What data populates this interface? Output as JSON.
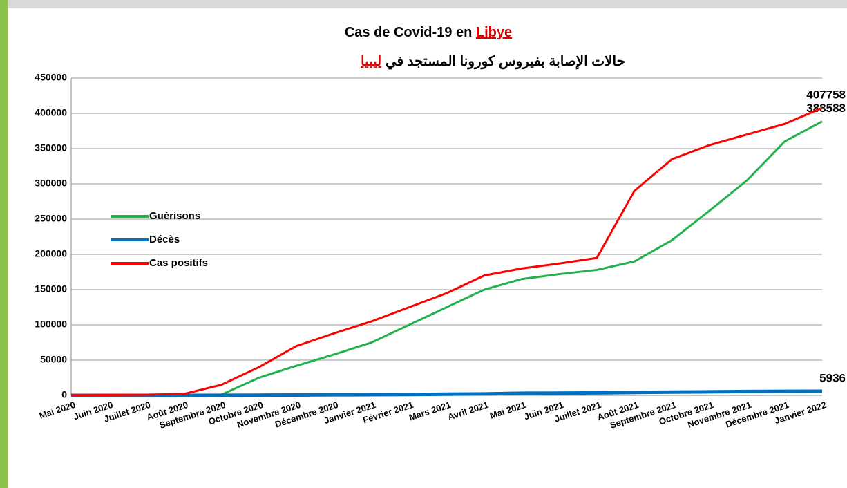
{
  "chart_data": {
    "type": "line",
    "title": "Cas de Covid-19 en",
    "title_highlight": "Libye",
    "subtitle": "حالات الإصابة بفيروس كورونا المستجد في",
    "subtitle_highlight": "ليبيا",
    "categories": [
      "Mai 2020",
      "Juin 2020",
      "Juillet 2020",
      "Août 2020",
      "Septembre 2020",
      "Octobre 2020",
      "Novembre 2020",
      "Décembre 2020",
      "Janvier 2021",
      "Février 2021",
      "Mars 2021",
      "Avril 2021",
      "Mai 2021",
      "Juin 2021",
      "Juillet 2021",
      "Août 2021",
      "Septembre 2021",
      "Octobre 2021",
      "Novembre 2021",
      "Décembre 2021",
      "Janvier 2022"
    ],
    "series": [
      {
        "name": "Guérisons",
        "color": "#22b14c",
        "values": [
          0,
          0,
          0,
          500,
          1000,
          25000,
          42000,
          58000,
          75000,
          100000,
          125000,
          150000,
          165000,
          172000,
          178000,
          190000,
          220000,
          262000,
          305000,
          360000,
          388588
        ]
      },
      {
        "name": "Décès",
        "color": "#0070c0",
        "values": [
          0,
          10,
          30,
          60,
          100,
          300,
          500,
          800,
          1000,
          1200,
          1700,
          2100,
          3100,
          3200,
          3500,
          4200,
          4600,
          5000,
          5500,
          5800,
          5936
        ]
      },
      {
        "name": "Cas positifs",
        "color": "#ff0000",
        "values": [
          100,
          500,
          1000,
          2000,
          15000,
          40000,
          70000,
          88000,
          105000,
          125000,
          145000,
          170000,
          180000,
          187000,
          195000,
          290000,
          335000,
          355000,
          370000,
          385000,
          407758
        ]
      }
    ],
    "ylim": [
      0,
      450000
    ],
    "yticks": [
      0,
      50000,
      100000,
      150000,
      200000,
      250000,
      300000,
      350000,
      400000,
      450000
    ],
    "grid": true
  }
}
